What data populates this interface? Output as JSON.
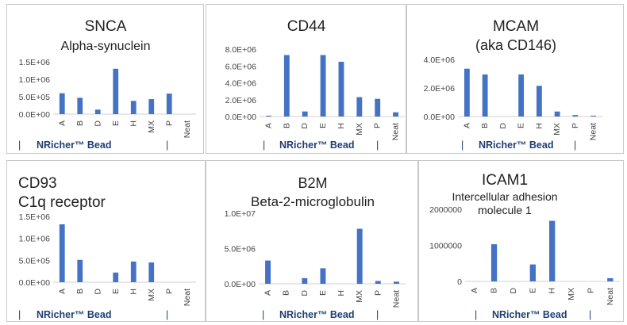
{
  "categories": [
    "A",
    "B",
    "D",
    "E",
    "H",
    "MX",
    "P",
    "Neat"
  ],
  "group_label": "NRicher™ Bead",
  "separator": "|",
  "bar_color": "#4472c4",
  "chart_data": [
    {
      "type": "bar",
      "title": "SNCA",
      "subtitle": "Alpha-synuclein",
      "categories": [
        "A",
        "B",
        "D",
        "E",
        "H",
        "MX",
        "P",
        "Neat"
      ],
      "values": [
        600000,
        470000,
        130000,
        1300000,
        380000,
        430000,
        590000,
        0
      ],
      "ylim": [
        0,
        1500000
      ],
      "yticks": [
        0,
        500000,
        1000000,
        1500000
      ],
      "ytick_labels": [
        "0.0E+00",
        "5.0E+05",
        "1.0E+06",
        "1.5E+06"
      ]
    },
    {
      "type": "bar",
      "title": "CD44",
      "subtitle": "",
      "categories": [
        "A",
        "B",
        "D",
        "E",
        "H",
        "MX",
        "P",
        "Neat"
      ],
      "values": [
        100000,
        7300000,
        600000,
        7300000,
        6500000,
        2300000,
        2100000,
        500000
      ],
      "ylim": [
        0,
        8000000
      ],
      "yticks": [
        0,
        2000000,
        4000000,
        6000000,
        8000000
      ],
      "ytick_labels": [
        "0.0E+00",
        "2.0E+06",
        "4.0E+06",
        "6.0E+06",
        "8.0E+06"
      ]
    },
    {
      "type": "bar",
      "title": "MCAM",
      "subtitle": "(aka CD146)",
      "categories": [
        "A",
        "B",
        "D",
        "E",
        "H",
        "MX",
        "P",
        "Neat"
      ],
      "values": [
        3350000,
        2950000,
        0,
        2950000,
        2150000,
        350000,
        100000,
        60000
      ],
      "ylim": [
        0,
        4000000
      ],
      "yticks": [
        0,
        2000000,
        4000000
      ],
      "ytick_labels": [
        "0.0E+00",
        "2.0E+06",
        "4.0E+06"
      ]
    },
    {
      "type": "bar",
      "title": "CD93",
      "subtitle": "C1q receptor",
      "categories": [
        "A",
        "B",
        "D",
        "E",
        "H",
        "MX",
        "P",
        "Neat"
      ],
      "values": [
        1320000,
        510000,
        0,
        220000,
        470000,
        450000,
        0,
        0
      ],
      "ylim": [
        0,
        1500000
      ],
      "yticks": [
        0,
        500000,
        1000000,
        1500000
      ],
      "ytick_labels": [
        "0.0E+00",
        "5.0E+05",
        "1.0E+06",
        "1.5E+06"
      ]
    },
    {
      "type": "bar",
      "title": "B2M",
      "subtitle": "Beta-2-microglobulin",
      "categories": [
        "A",
        "B",
        "D",
        "E",
        "H",
        "MX",
        "P",
        "Neat"
      ],
      "values": [
        3300000,
        0,
        800000,
        2200000,
        0,
        7800000,
        400000,
        300000
      ],
      "ylim": [
        0,
        10000000
      ],
      "yticks": [
        0,
        5000000,
        10000000
      ],
      "ytick_labels": [
        "0.0E+00",
        "5.0E+06",
        "1.0E+07"
      ]
    },
    {
      "type": "bar",
      "title": "ICAM1",
      "subtitle": "Intercellular adhesion",
      "subtitle2": "molecule 1",
      "categories": [
        "A",
        "B",
        "D",
        "E",
        "H",
        "MX",
        "P",
        "Neat"
      ],
      "values": [
        0,
        1030000,
        0,
        470000,
        1680000,
        0,
        0,
        90000
      ],
      "ylim": [
        0,
        2000000
      ],
      "yticks": [
        0,
        1000000,
        2000000
      ],
      "ytick_labels": [
        "0",
        "1000000",
        "2000000"
      ]
    }
  ]
}
